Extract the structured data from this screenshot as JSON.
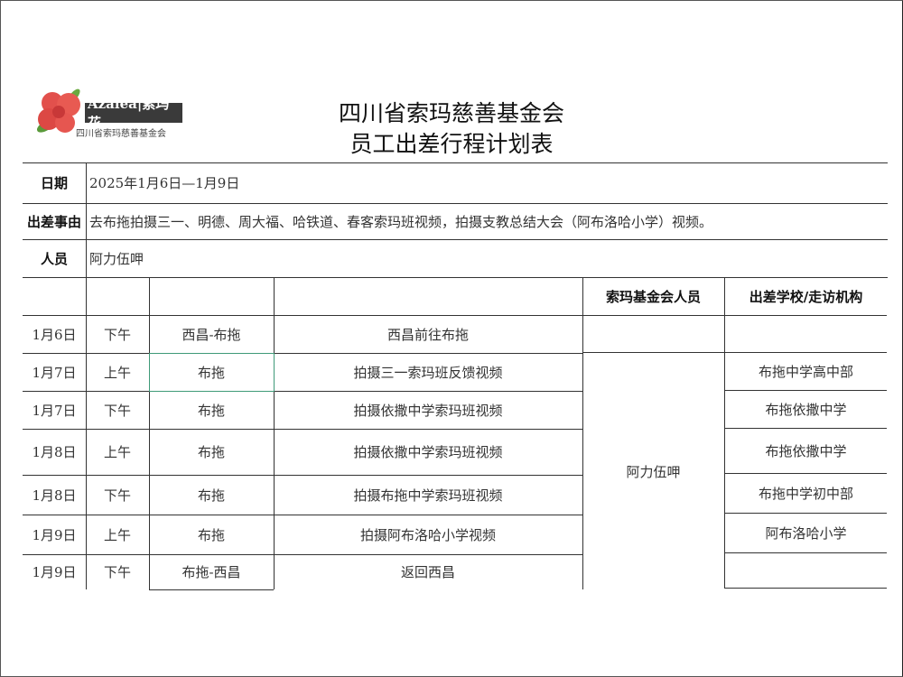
{
  "logo": {
    "brand": "Azalea|索玛花",
    "subtitle": "四川省索玛慈善基金会"
  },
  "title": {
    "line1": "四川省索玛慈善基金会",
    "line2": "员工出差行程计划表"
  },
  "info": {
    "date_label": "日期",
    "date_value": "2025年1月6日—1月9日",
    "reason_label": "出差事由",
    "reason_value": "去布拖拍摄三一、明德、周大福、哈铁道、春客索玛班视频，拍摄支教总结大会（阿布洛哈小学）视频。",
    "staff_label": "人员",
    "staff_value": "阿力伍呷"
  },
  "table": {
    "headers": [
      "",
      "",
      "",
      "",
      "索玛基金会人员",
      "出差学校/走访机构"
    ],
    "rows": [
      {
        "date": "1月6日",
        "period": "下午",
        "place": "西昌-布拖",
        "task": "西昌前往布拖",
        "school": ""
      },
      {
        "date": "1月7日",
        "period": "上午",
        "place": "布拖",
        "task": "拍摄三一索玛班反馈视频",
        "school": "布拖中学高中部"
      },
      {
        "date": "1月7日",
        "period": "下午",
        "place": "布拖",
        "task": "拍摄依撒中学索玛班视频",
        "school": "布拖依撒中学"
      },
      {
        "date": "1月8日",
        "period": "上午",
        "place": "布拖",
        "task": "拍摄依撒中学索玛班视频",
        "school": "布拖依撒中学"
      },
      {
        "date": "1月8日",
        "period": "下午",
        "place": "布拖",
        "task": "拍摄布拖中学索玛班视频",
        "school": "布拖中学初中部"
      },
      {
        "date": "1月9日",
        "period": "上午",
        "place": "布拖",
        "task": "拍摄阿布洛哈小学视频",
        "school": "阿布洛哈小学"
      },
      {
        "date": "1月9日",
        "period": "下午",
        "place": "布拖-西昌",
        "task": "返回西昌",
        "school": ""
      }
    ],
    "merged_staff": "阿力伍呷"
  },
  "colors": {
    "selection": "#3f9a78",
    "logo_flower": "#e04a4a"
  }
}
